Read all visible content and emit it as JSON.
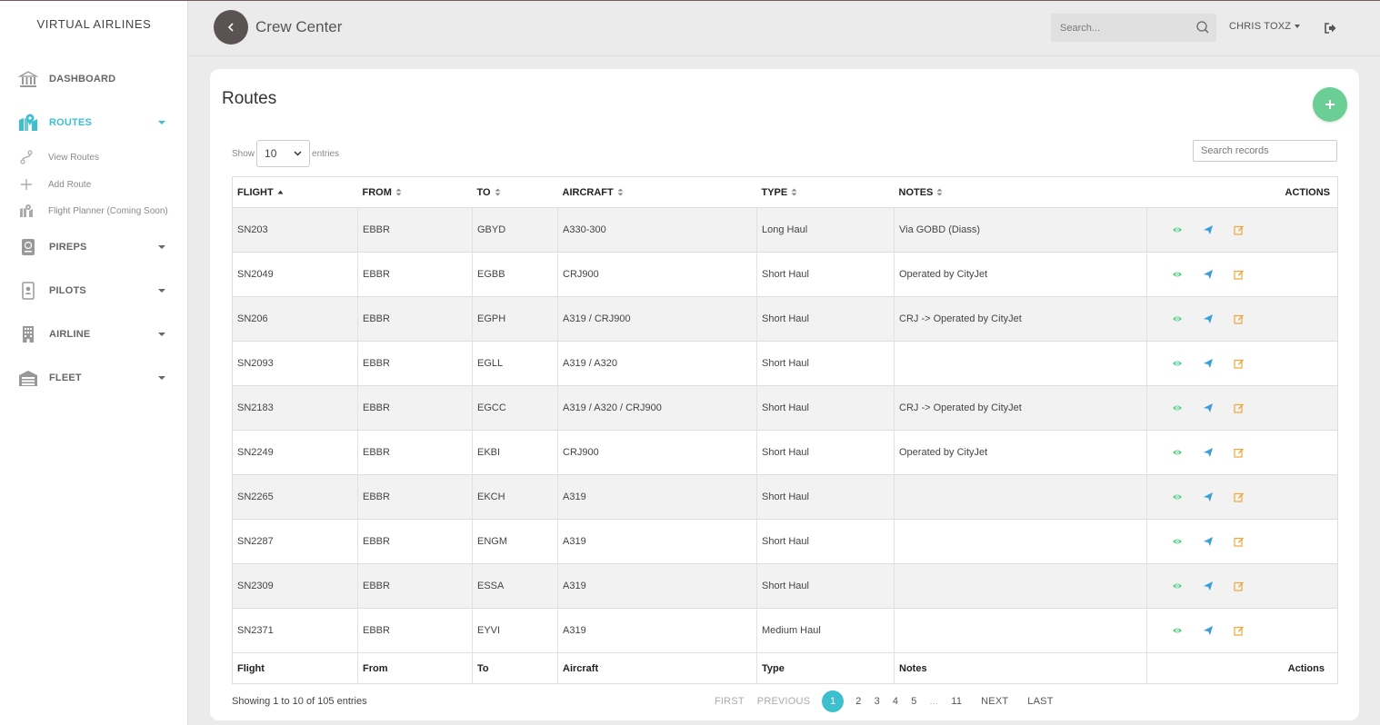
{
  "sidebar": {
    "brand": "VIRTUAL AIRLINES",
    "items": [
      {
        "label": "DASHBOARD",
        "icon": "bank-icon"
      },
      {
        "label": "ROUTES",
        "icon": "map-pin-icon"
      },
      {
        "label": "PIREPS",
        "icon": "passport-icon"
      },
      {
        "label": "PILOTS",
        "icon": "id-badge-icon"
      },
      {
        "label": "AIRLINE",
        "icon": "building-icon"
      },
      {
        "label": "FLEET",
        "icon": "hangar-icon"
      }
    ],
    "sub_items": [
      {
        "label": "View Routes",
        "icon": "route-icon"
      },
      {
        "label": "Add Route",
        "icon": "plus-icon"
      },
      {
        "label": "Flight Planner (Coming Soon)",
        "icon": "map-marker-icon"
      }
    ]
  },
  "header": {
    "title": "Crew Center",
    "search_placeholder": "Search...",
    "user": "CHRIS TOXZ"
  },
  "card": {
    "title": "Routes",
    "show_label": "Show",
    "entries_value": "10",
    "entries_label": "entries",
    "search_placeholder": "Search records"
  },
  "table": {
    "headers": [
      "FLIGHT",
      "FROM",
      "TO",
      "AIRCRAFT",
      "TYPE",
      "NOTES",
      "ACTIONS"
    ],
    "footers": [
      "Flight",
      "From",
      "To",
      "Aircraft",
      "Type",
      "Notes",
      "Actions"
    ],
    "rows": [
      {
        "flight": "SN203",
        "from": "EBBR",
        "to": "GBYD",
        "aircraft": "A330-300",
        "type": "Long Haul",
        "notes": "Via GOBD (Diass)"
      },
      {
        "flight": "SN2049",
        "from": "EBBR",
        "to": "EGBB",
        "aircraft": "CRJ900",
        "type": "Short Haul",
        "notes": "Operated by CityJet"
      },
      {
        "flight": "SN206",
        "from": "EBBR",
        "to": "EGPH",
        "aircraft": "A319 / CRJ900",
        "type": "Short Haul",
        "notes": "CRJ -> Operated by CityJet"
      },
      {
        "flight": "SN2093",
        "from": "EBBR",
        "to": "EGLL",
        "aircraft": "A319 / A320",
        "type": "Short Haul",
        "notes": ""
      },
      {
        "flight": "SN2183",
        "from": "EBBR",
        "to": "EGCC",
        "aircraft": "A319 / A320 / CRJ900",
        "type": "Short Haul",
        "notes": "CRJ -> Operated by CityJet"
      },
      {
        "flight": "SN2249",
        "from": "EBBR",
        "to": "EKBI",
        "aircraft": "CRJ900",
        "type": "Short Haul",
        "notes": "Operated by CityJet"
      },
      {
        "flight": "SN2265",
        "from": "EBBR",
        "to": "EKCH",
        "aircraft": "A319",
        "type": "Short Haul",
        "notes": ""
      },
      {
        "flight": "SN2287",
        "from": "EBBR",
        "to": "ENGM",
        "aircraft": "A319",
        "type": "Short Haul",
        "notes": ""
      },
      {
        "flight": "SN2309",
        "from": "EBBR",
        "to": "ESSA",
        "aircraft": "A319",
        "type": "Short Haul",
        "notes": ""
      },
      {
        "flight": "SN2371",
        "from": "EBBR",
        "to": "EYVI",
        "aircraft": "A319",
        "type": "Medium Haul",
        "notes": ""
      }
    ]
  },
  "footer": {
    "info": "Showing 1 to 10 of 105 entries",
    "pagination": {
      "first": "FIRST",
      "previous": "PREVIOUS",
      "pages": [
        "1",
        "2",
        "3",
        "4",
        "5",
        "...",
        "11"
      ],
      "current": "1",
      "next": "NEXT",
      "last": "LAST"
    }
  },
  "colors": {
    "accent": "#3ebfce",
    "add_button": "#6bcf95",
    "view_icon": "#5ccf8e",
    "send_icon": "#3a9fd6",
    "edit_icon": "#f0a63a"
  }
}
